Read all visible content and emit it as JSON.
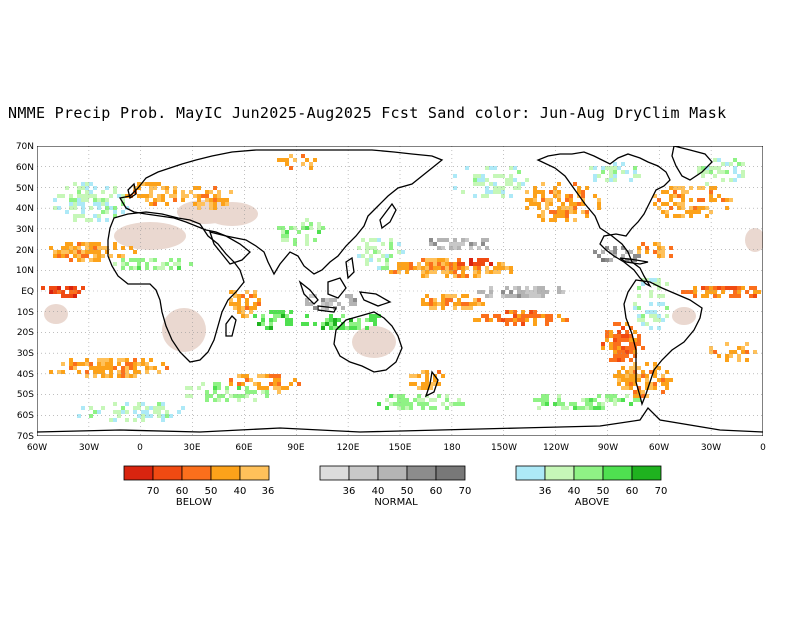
{
  "title": "NMME Precip Prob. MayIC  Jun2025-Aug2025 Fcst  Sand color: Jun-Aug DryClim Mask",
  "colors": {
    "below": [
      "#d9240f",
      "#f04a12",
      "#fb6f1c",
      "#fca21a",
      "#ffc15a"
    ],
    "normal": [
      "#dcdcdc",
      "#c8c8c8",
      "#b4b4b4",
      "#8c8c8c",
      "#787878"
    ],
    "above": [
      "#ade9f7",
      "#c6f7b8",
      "#8ff285",
      "#4fe050",
      "#1fb21f"
    ],
    "sand": "#ead8d0",
    "coast": "#000000"
  },
  "map": {
    "lat_ticks": [
      "70N",
      "60N",
      "50N",
      "40N",
      "30N",
      "20N",
      "10N",
      "EQ",
      "10S",
      "20S",
      "30S",
      "40S",
      "50S",
      "60S",
      "70S"
    ],
    "lon_ticks": [
      "60W",
      "30W",
      "0",
      "30E",
      "60E",
      "90E",
      "120E",
      "150E",
      "180",
      "150W",
      "120W",
      "90W",
      "60W",
      "30W",
      "0"
    ]
  },
  "legend": {
    "below": {
      "label": "BELOW",
      "ticks": [
        "70",
        "60",
        "50",
        "40",
        "36"
      ]
    },
    "normal": {
      "label": "NORMAL",
      "ticks": [
        "36",
        "40",
        "50",
        "60",
        "70"
      ]
    },
    "above": {
      "label": "ABOVE",
      "ticks": [
        "36",
        "40",
        "50",
        "60",
        "70"
      ]
    }
  }
}
